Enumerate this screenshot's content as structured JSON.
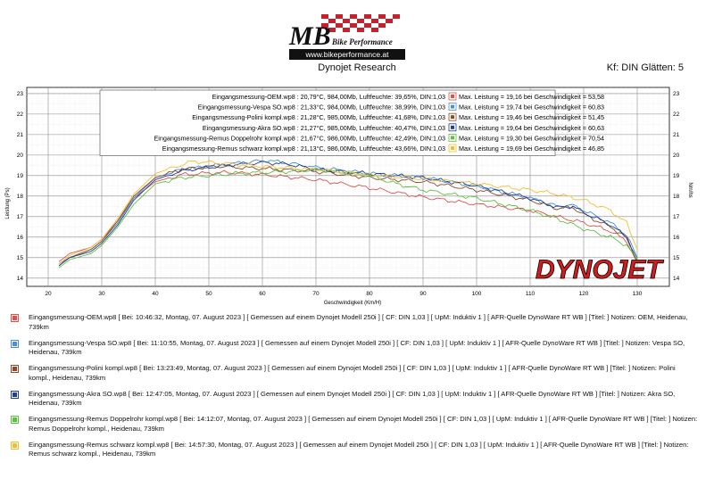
{
  "header": {
    "logo_text": "MB Bike Performance",
    "website": "www.bikeperformance.at",
    "title": "Dynojet Research",
    "right_info": "Kf: DIN Glätten: 5"
  },
  "chart_data": {
    "type": "line",
    "xlabel": "Geschwindigkeit (Km/H)",
    "ylabel": "Leistung (Ps)",
    "ylabel_right": "Nm/hs",
    "xlim": [
      16,
      136
    ],
    "ylim": [
      13.6,
      23.3
    ],
    "x_ticks": [
      20,
      30,
      40,
      50,
      60,
      70,
      80,
      90,
      100,
      110,
      120,
      130
    ],
    "y_ticks": [
      14,
      15,
      16,
      17,
      18,
      19,
      20,
      21,
      22,
      23
    ],
    "grid": true,
    "brand_watermark": "DYNOJET",
    "run_info": [
      {
        "label": "Eingangsmessung-OEM.wp8 : 20,79°C, 984,00Mb, Luftfeuchte: 39,65%, DIN:1,03",
        "max": "Max. Leistung = 19,16 bei Geschwindigkeit = 53,58"
      },
      {
        "label": "Eingangsmessung-Vespa SO.wp8 : 21,33°C, 984,00Mb, Luftfeuchte: 38,99%, DIN:1,03",
        "max": "Max. Leistung = 19,74 bei Geschwindigkeit = 60,83"
      },
      {
        "label": "Eingangsmessung-Polini kompl.wp8 : 21,28°C, 985,00Mb, Luftfeuchte: 41,68%, DIN:1,03",
        "max": "Max. Leistung = 19,46 bei Geschwindigkeit = 51,45"
      },
      {
        "label": "Eingangsmessung-Akra SO.wp8 : 21,27°C, 985,00Mb, Luftfeuchte: 40,47%, DIN:1,03",
        "max": "Max. Leistung = 19,64 bei Geschwindigkeit = 60,63"
      },
      {
        "label": "Eingangsmessung-Remus Doppelrohr kompl.wp8 : 21,67°C, 986,00Mb, Luftfeuchte: 42,49%, DIN:1,03",
        "max": "Max. Leistung = 19,30 bei Geschwindigkeit = 70,54"
      },
      {
        "label": "Eingangsmessung-Remus schwarz kompl.wp8 : 21,13°C, 986,00Mb, Luftfeuchte: 43,66%, DIN:1,03",
        "max": "Max. Leistung = 19,69 bei Geschwindigkeit = 46,85"
      }
    ],
    "series": [
      {
        "color": "#d9534f",
        "x": [
          22,
          24,
          28,
          30,
          33,
          36,
          40,
          45,
          50,
          53.58,
          60,
          70,
          80,
          90,
          100,
          110,
          115,
          120,
          125,
          128,
          130
        ],
        "values": [
          14.8,
          15.2,
          15.5,
          15.9,
          16.8,
          17.9,
          18.7,
          19.05,
          19.12,
          19.16,
          19.05,
          18.8,
          18.4,
          17.95,
          17.6,
          17.3,
          17.0,
          16.7,
          16.3,
          15.8,
          14.8
        ]
      },
      {
        "color": "#4a8fd6",
        "x": [
          22,
          24,
          28,
          30,
          33,
          36,
          40,
          45,
          50,
          55,
          60.83,
          65,
          70,
          80,
          90,
          100,
          110,
          115,
          118,
          120,
          125,
          128,
          130
        ],
        "values": [
          14.7,
          15.0,
          15.4,
          15.8,
          16.7,
          17.9,
          18.9,
          19.3,
          19.45,
          19.6,
          19.74,
          19.6,
          19.4,
          19.1,
          18.9,
          18.5,
          17.9,
          17.5,
          17.55,
          17.3,
          16.7,
          16.1,
          15.0
        ]
      },
      {
        "color": "#8b4a2a",
        "x": [
          22,
          24,
          28,
          30,
          33,
          36,
          40,
          45,
          51.45,
          55,
          60,
          70,
          80,
          90,
          100,
          110,
          115,
          118,
          120,
          125,
          128,
          130
        ],
        "values": [
          14.6,
          15.0,
          15.4,
          15.8,
          16.8,
          18.0,
          18.9,
          19.3,
          19.46,
          19.4,
          19.35,
          19.2,
          18.9,
          18.7,
          18.3,
          17.8,
          17.4,
          17.45,
          17.1,
          16.5,
          16.0,
          14.8
        ]
      },
      {
        "color": "#1f3f8f",
        "x": [
          22,
          24,
          28,
          30,
          33,
          36,
          40,
          45,
          50,
          55,
          60.63,
          65,
          70,
          80,
          90,
          100,
          110,
          115,
          118,
          120,
          125,
          128,
          130
        ],
        "values": [
          14.6,
          15.0,
          15.3,
          15.7,
          16.6,
          17.8,
          18.8,
          19.25,
          19.4,
          19.55,
          19.64,
          19.55,
          19.3,
          19.1,
          18.9,
          18.5,
          17.9,
          17.45,
          17.5,
          17.2,
          16.6,
          16.0,
          14.9
        ]
      },
      {
        "color": "#5fbf3f",
        "x": [
          22,
          24,
          28,
          30,
          33,
          36,
          40,
          45,
          50,
          55,
          60,
          65,
          70.54,
          80,
          85,
          90,
          100,
          110,
          115,
          120,
          125,
          128,
          130
        ],
        "values": [
          14.5,
          14.9,
          15.2,
          15.6,
          16.5,
          17.6,
          18.6,
          18.9,
          19.0,
          19.1,
          19.15,
          19.2,
          19.3,
          19.0,
          18.6,
          18.3,
          17.9,
          17.3,
          16.9,
          16.4,
          16.0,
          15.6,
          14.9
        ]
      },
      {
        "color": "#f0c030",
        "x": [
          22,
          24,
          28,
          30,
          33,
          36,
          40,
          46.85,
          50,
          55,
          60,
          70,
          80,
          90,
          100,
          110,
          115,
          120,
          125,
          128,
          130
        ],
        "values": [
          14.7,
          15.1,
          15.5,
          15.9,
          16.9,
          18.1,
          19.1,
          19.69,
          19.65,
          19.55,
          19.45,
          19.3,
          19.05,
          18.85,
          18.6,
          18.3,
          18.1,
          17.8,
          17.3,
          16.7,
          15.4
        ]
      }
    ]
  },
  "run_notes": [
    {
      "color": "#d9534f",
      "text": "Eingangsmessung-OEM.wp8 [ Bei: 10:46:32, Montag, 07. August 2023 ] [ Gemessen auf einem Dynojet Modell 250i ] [ CF: DIN 1,03 ] [ UpM: Induktiv 1 ] [ AFR-Quelle DynoWare RT WB ] [Titel: ] Notizen: OEM, Heidenau, 739km"
    },
    {
      "color": "#4a8fd6",
      "text": "Eingangsmessung-Vespa SO.wp8 [ Bei: 11:10:55, Montag, 07. August 2023 ] [ Gemessen auf einem Dynojet Modell 250i ] [ CF: DIN 1,03 ] [ UpM: Induktiv 1 ] [ AFR-Quelle DynoWare RT WB ] [Titel: ] Notizen: Vespa SO, Heidenau, 739km"
    },
    {
      "color": "#8b4a2a",
      "text": "Eingangsmessung-Polini kompl.wp8 [ Bei: 13:23:49, Montag, 07. August 2023 ] [ Gemessen auf einem Dynojet Modell 250i ] [ CF: DIN 1,03 ] [ UpM: Induktiv 1 ] [ AFR-Quelle DynoWare RT WB ] [Titel: ] Notizen: Polini kompl., Heidenau, 739km"
    },
    {
      "color": "#1f3f8f",
      "text": "Eingangsmessung-Akra SO.wp8 [ Bei: 12:47:05, Montag, 07. August 2023 ] [ Gemessen auf einem Dynojet Modell 250i ] [ CF: DIN 1,03 ] [ UpM: Induktiv 1 ] [ AFR-Quelle DynoWare RT WB ] [Titel: ] Notizen: Akra SO, Heidenau, 739km"
    },
    {
      "color": "#5fbf3f",
      "text": "Eingangsmessung-Remus Doppelrohr kompl.wp8 [ Bei: 14:12:07, Montag, 07. August 2023 ] [ Gemessen auf einem Dynojet Modell 250i ] [ CF: DIN 1,03 ] [ UpM: Induktiv 1 ] [ AFR-Quelle DynoWare RT WB ] [Titel: ] Notizen: Remus Doppelrohr kompl., Heidenau, 739km"
    },
    {
      "color": "#f0c030",
      "text": "Eingangsmessung-Remus schwarz kompl.wp8 [ Bei: 14:57:30, Montag, 07. August 2023 ] [ Gemessen auf einem Dynojet Modell 250i ] [ CF: DIN 1,03 ] [ UpM: Induktiv 1 ] [ AFR-Quelle DynoWare RT WB ] [Titel: ] Notizen: Remus schwarz kompl., Heidenau, 739km"
    }
  ]
}
